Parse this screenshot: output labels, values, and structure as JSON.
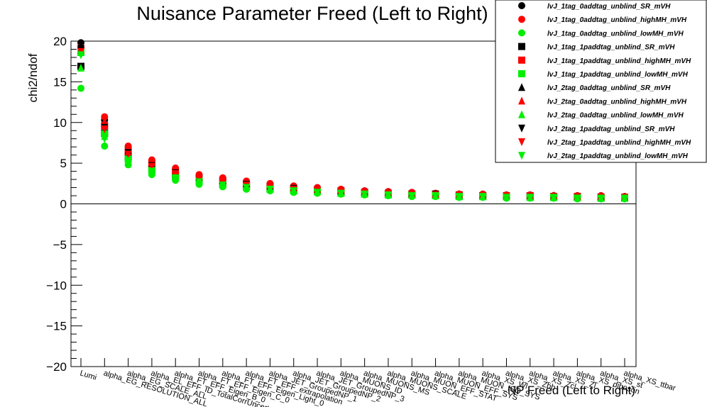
{
  "chart_data": {
    "type": "scatter",
    "title": "Nuisance Parameter Freed (Left to Right)",
    "xlabel": "NP Freed (Left to Right)",
    "ylabel": "chi2/ndof",
    "ylim": [
      -20,
      20
    ],
    "yticks": [
      -20,
      -15,
      -10,
      -5,
      0,
      5,
      10,
      15,
      20
    ],
    "categories": [
      "Lumi",
      "alpha_EG_RESOLUTION_ALL",
      "alpha_EG_SCALE_ALL",
      "alpha_EL_EFF_ID_TotalCorrUncertainty",
      "alpha_FT_EFF_Eigen_B_0",
      "alpha_FT_EFF_Eigen_C_0",
      "alpha_FT_EFF_Eigen_Light_0",
      "alpha_FT_EFF_extrapolation",
      "alpha_JET_GroupedNP_1",
      "alpha_JET_GroupedNP_2",
      "alpha_JET_GroupedNP_3",
      "alpha_MUONS_ID",
      "alpha_MUONS_MS",
      "alpha_MUONS_SCALE",
      "alpha_MUON_EFF_STAT",
      "alpha_MUON_EFF_SYS",
      "alpha_MUON_ISO_SYS",
      "alpha_XS_Wl",
      "alpha_XS_Zbb",
      "alpha_XS_Zcl",
      "alpha_XS_Zl",
      "alpha_XS_diboson",
      "alpha_XS_st",
      "alpha_XS_ttbar"
    ],
    "legend_position": "top-right",
    "series": [
      {
        "name": "lvJ_1tag_0addtag_unblind_SR_mVH",
        "color": "#000000",
        "marker": "circle",
        "values": [
          19.8,
          10.3,
          7.0,
          5.3,
          4.3,
          3.5,
          3.1,
          2.7,
          2.4,
          2.1,
          1.9,
          1.7,
          1.6,
          1.5,
          1.4,
          1.3,
          1.2,
          1.2,
          1.1,
          1.1,
          1.0,
          1.0,
          1.0,
          0.9
        ]
      },
      {
        "name": "lvJ_1tag_0addtag_unblind_highMH_mVH",
        "color": "#ff0000",
        "marker": "circle",
        "values": [
          19.3,
          10.7,
          7.1,
          5.4,
          4.4,
          3.6,
          3.2,
          2.8,
          2.5,
          2.2,
          2.0,
          1.8,
          1.6,
          1.5,
          1.4,
          1.3,
          1.2,
          1.2,
          1.1,
          1.1,
          1.0,
          1.0,
          1.0,
          0.9
        ]
      },
      {
        "name": "lvJ_1tag_0addtag_unblind_lowMH_mVH",
        "color": "#00ee00",
        "marker": "circle",
        "values": [
          14.2,
          7.1,
          4.8,
          3.6,
          2.9,
          2.4,
          2.1,
          1.8,
          1.6,
          1.4,
          1.3,
          1.2,
          1.1,
          1.0,
          0.9,
          0.9,
          0.8,
          0.8,
          0.7,
          0.7,
          0.7,
          0.6,
          0.6,
          0.6
        ]
      },
      {
        "name": "lvJ_1tag_1paddtag_unblind_SR_mVH",
        "color": "#000000",
        "marker": "square",
        "values": [
          16.9,
          8.7,
          5.8,
          4.3,
          3.5,
          2.9,
          2.5,
          2.2,
          1.9,
          1.7,
          1.6,
          1.4,
          1.3,
          1.2,
          1.1,
          1.1,
          1.0,
          1.0,
          0.9,
          0.9,
          0.8,
          0.8,
          0.8,
          0.7
        ]
      },
      {
        "name": "lvJ_1tag_1paddtag_unblind_highMH_mVH",
        "color": "#ff0000",
        "marker": "square",
        "values": [
          19.0,
          9.6,
          6.4,
          4.8,
          3.9,
          3.2,
          2.8,
          2.4,
          2.1,
          1.9,
          1.7,
          1.6,
          1.4,
          1.3,
          1.2,
          1.2,
          1.1,
          1.0,
          1.0,
          1.0,
          0.9,
          0.9,
          0.8,
          0.8
        ]
      },
      {
        "name": "lvJ_1tag_1paddtag_unblind_lowMH_mVH",
        "color": "#00ee00",
        "marker": "square",
        "values": [
          18.6,
          8.6,
          5.5,
          4.1,
          3.3,
          2.8,
          2.4,
          2.1,
          1.8,
          1.6,
          1.5,
          1.3,
          1.2,
          1.1,
          1.1,
          1.0,
          0.9,
          0.9,
          0.9,
          0.8,
          0.8,
          0.8,
          0.7,
          0.7
        ]
      },
      {
        "name": "lvJ_2tag_0addtag_unblind_SR_mVH",
        "color": "#000000",
        "marker": "triangle-up",
        "values": [
          19.6,
          9.9,
          6.6,
          5.0,
          4.0,
          3.3,
          2.9,
          2.5,
          2.2,
          2.0,
          1.8,
          1.6,
          1.5,
          1.4,
          1.3,
          1.2,
          1.1,
          1.1,
          1.0,
          1.0,
          1.0,
          0.9,
          0.9,
          0.8
        ]
      },
      {
        "name": "lvJ_2tag_0addtag_unblind_highMH_mVH",
        "color": "#ff0000",
        "marker": "triangle-up",
        "values": [
          18.9,
          10.1,
          6.8,
          5.1,
          4.1,
          3.4,
          3.0,
          2.6,
          2.3,
          2.0,
          1.8,
          1.7,
          1.5,
          1.4,
          1.3,
          1.2,
          1.2,
          1.1,
          1.0,
          1.0,
          1.0,
          0.9,
          0.9,
          0.8
        ]
      },
      {
        "name": "lvJ_2tag_0addtag_unblind_lowMH_mVH",
        "color": "#00ee00",
        "marker": "triangle-up",
        "values": [
          16.7,
          8.3,
          5.6,
          4.2,
          3.4,
          2.8,
          2.4,
          2.1,
          1.9,
          1.7,
          1.5,
          1.4,
          1.3,
          1.2,
          1.1,
          1.0,
          1.0,
          0.9,
          0.9,
          0.8,
          0.8,
          0.8,
          0.7,
          0.7
        ]
      },
      {
        "name": "lvJ_2tag_1paddtag_unblind_SR_mVH",
        "color": "#000000",
        "marker": "triangle-down",
        "values": [
          19.1,
          9.4,
          6.3,
          4.7,
          3.8,
          3.1,
          2.7,
          2.4,
          2.1,
          1.9,
          1.7,
          1.5,
          1.4,
          1.3,
          1.2,
          1.2,
          1.1,
          1.0,
          1.0,
          0.9,
          0.9,
          0.9,
          0.8,
          0.8
        ]
      },
      {
        "name": "lvJ_2tag_1paddtag_unblind_highMH_mVH",
        "color": "#ff0000",
        "marker": "triangle-down",
        "values": [
          18.7,
          9.2,
          6.1,
          4.6,
          3.7,
          3.1,
          2.7,
          2.3,
          2.1,
          1.8,
          1.7,
          1.5,
          1.4,
          1.3,
          1.2,
          1.1,
          1.1,
          1.0,
          1.0,
          0.9,
          0.9,
          0.9,
          0.8,
          0.8
        ]
      },
      {
        "name": "lvJ_2tag_1paddtag_unblind_lowMH_mVH",
        "color": "#00ee00",
        "marker": "triangle-down",
        "values": [
          18.3,
          8.0,
          5.3,
          4.0,
          3.2,
          2.7,
          2.3,
          2.0,
          1.8,
          1.6,
          1.4,
          1.3,
          1.2,
          1.1,
          1.0,
          1.0,
          0.9,
          0.9,
          0.8,
          0.8,
          0.8,
          0.7,
          0.7,
          0.7
        ]
      }
    ]
  }
}
